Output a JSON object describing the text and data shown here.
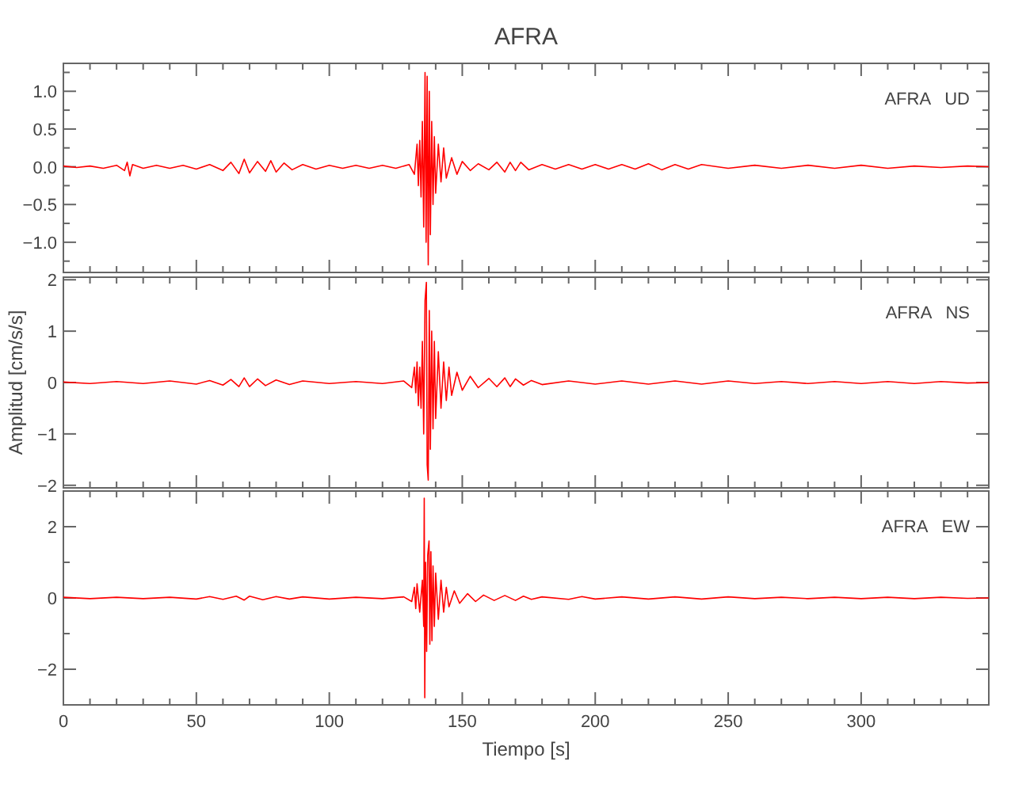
{
  "chart_data": [
    {
      "type": "line",
      "title": "AFRA",
      "annotations": [
        "AFRA   UD"
      ],
      "tick_labels": "y",
      "xlim": [
        0,
        348
      ],
      "xticks": [
        0,
        {
          "value": 10,
          "label": null
        },
        {
          "value": 20,
          "label": null
        },
        {
          "value": 30,
          "label": null
        },
        {
          "value": 40,
          "label": null
        },
        50,
        {
          "value": 60,
          "label": null
        },
        {
          "value": 70,
          "label": null
        },
        {
          "value": 80,
          "label": null
        },
        {
          "value": 90,
          "label": null
        },
        100,
        {
          "value": 110,
          "label": null
        },
        {
          "value": 120,
          "label": null
        },
        {
          "value": 130,
          "label": null
        },
        {
          "value": 140,
          "label": null
        },
        150,
        {
          "value": 160,
          "label": null
        },
        {
          "value": 170,
          "label": null
        },
        {
          "value": 180,
          "label": null
        },
        {
          "value": 190,
          "label": null
        },
        200,
        {
          "value": 210,
          "label": null
        },
        {
          "value": 220,
          "label": null
        },
        {
          "value": 230,
          "label": null
        },
        {
          "value": 240,
          "label": null
        },
        250,
        {
          "value": 260,
          "label": null
        },
        {
          "value": 270,
          "label": null
        },
        {
          "value": 280,
          "label": null
        },
        {
          "value": 290,
          "label": null
        },
        300,
        {
          "value": 310,
          "label": null
        },
        {
          "value": 320,
          "label": null
        },
        {
          "value": 330,
          "label": null
        },
        {
          "value": 340,
          "label": null
        }
      ],
      "ylim": [
        -1.4,
        1.37
      ],
      "yticks": [
        {
          "value": -1.25,
          "label": null
        },
        {
          "value": -1,
          "label": "−1.0"
        },
        {
          "value": -0.75,
          "label": null
        },
        {
          "value": -0.5,
          "label": "−0.5"
        },
        {
          "value": -0.25,
          "label": null
        },
        {
          "value": 0,
          "label": "0.0"
        },
        {
          "value": 0.25,
          "label": null
        },
        {
          "value": 0.5,
          "label": "0.5"
        },
        {
          "value": 0.75,
          "label": null
        },
        {
          "value": 1,
          "label": "1.0"
        },
        {
          "value": 1.25,
          "label": null
        }
      ],
      "series": [
        {
          "color": "#ff0000",
          "x": [
            0,
            5,
            10,
            15,
            20,
            23,
            24,
            25,
            26,
            30,
            35,
            40,
            45,
            50,
            55,
            60,
            63,
            66,
            68,
            70,
            73,
            76,
            78,
            80,
            83,
            86,
            90,
            95,
            100,
            105,
            110,
            115,
            120,
            125,
            130,
            132,
            133,
            133.5,
            134,
            134.5,
            135,
            135.5,
            136,
            136.4,
            136.8,
            137.2,
            137.6,
            138,
            138.5,
            139,
            139.5,
            140,
            141,
            142,
            143,
            144,
            146,
            148,
            150,
            153,
            156,
            160,
            163,
            166,
            168,
            170,
            172,
            175,
            180,
            185,
            190,
            195,
            200,
            205,
            210,
            215,
            220,
            225,
            230,
            235,
            240,
            250,
            260,
            270,
            280,
            290,
            300,
            310,
            320,
            330,
            340,
            348
          ],
          "values": [
            0.01,
            -0.01,
            0.01,
            -0.02,
            0.02,
            -0.05,
            0.06,
            -0.12,
            0.03,
            -0.02,
            0.02,
            -0.02,
            0.02,
            -0.03,
            0.03,
            -0.05,
            0.06,
            -0.09,
            0.1,
            -0.08,
            0.07,
            -0.06,
            0.08,
            -0.07,
            0.05,
            -0.04,
            0.03,
            -0.03,
            0.02,
            -0.02,
            0.02,
            -0.02,
            0.02,
            -0.02,
            0.03,
            -0.1,
            0.3,
            -0.25,
            0.35,
            -0.4,
            0.6,
            -0.8,
            1.25,
            -1,
            1.2,
            -1.3,
            1,
            -0.9,
            0.6,
            -0.5,
            0.4,
            -0.35,
            0.3,
            -0.2,
            0.25,
            -0.15,
            0.12,
            -0.1,
            0.07,
            -0.05,
            0.04,
            -0.04,
            0.06,
            -0.07,
            0.06,
            -0.05,
            0.06,
            -0.04,
            0.03,
            -0.03,
            0.03,
            -0.03,
            0.03,
            -0.03,
            0.03,
            -0.03,
            0.04,
            -0.04,
            0.03,
            -0.03,
            0.03,
            -0.02,
            0.02,
            -0.02,
            0.02,
            -0.02,
            0.02,
            -0.02,
            0.01,
            -0.01,
            0.01,
            0
          ]
        }
      ]
    },
    {
      "type": "line",
      "ylabel": "Amplitud [cm/s/s]",
      "annotations": [
        "AFRA   NS"
      ],
      "tick_labels": "y",
      "xlim": [
        0,
        348
      ],
      "xticks": [
        0,
        {
          "value": 10,
          "label": null
        },
        {
          "value": 20,
          "label": null
        },
        {
          "value": 30,
          "label": null
        },
        {
          "value": 40,
          "label": null
        },
        50,
        {
          "value": 60,
          "label": null
        },
        {
          "value": 70,
          "label": null
        },
        {
          "value": 80,
          "label": null
        },
        {
          "value": 90,
          "label": null
        },
        100,
        {
          "value": 110,
          "label": null
        },
        {
          "value": 120,
          "label": null
        },
        {
          "value": 130,
          "label": null
        },
        {
          "value": 140,
          "label": null
        },
        150,
        {
          "value": 160,
          "label": null
        },
        {
          "value": 170,
          "label": null
        },
        {
          "value": 180,
          "label": null
        },
        {
          "value": 190,
          "label": null
        },
        200,
        {
          "value": 210,
          "label": null
        },
        {
          "value": 220,
          "label": null
        },
        {
          "value": 230,
          "label": null
        },
        {
          "value": 240,
          "label": null
        },
        250,
        {
          "value": 260,
          "label": null
        },
        {
          "value": 270,
          "label": null
        },
        {
          "value": 280,
          "label": null
        },
        {
          "value": 290,
          "label": null
        },
        300,
        {
          "value": 310,
          "label": null
        },
        {
          "value": 320,
          "label": null
        },
        {
          "value": 330,
          "label": null
        },
        {
          "value": 340,
          "label": null
        }
      ],
      "ylim": [
        -2.05,
        2.05
      ],
      "yticks": [
        {
          "value": -2,
          "label": "−2"
        },
        {
          "value": -1,
          "label": "−1"
        },
        0,
        1,
        2
      ],
      "series": [
        {
          "color": "#ff0000",
          "x": [
            0,
            10,
            20,
            30,
            40,
            50,
            55,
            60,
            63,
            66,
            68,
            70,
            73,
            76,
            80,
            85,
            90,
            100,
            110,
            120,
            128,
            131,
            132,
            132.5,
            133,
            133.5,
            134,
            134.5,
            135,
            135.5,
            136,
            136.5,
            136.8,
            137.2,
            137.6,
            138,
            138.5,
            139,
            139.5,
            140,
            141,
            142,
            143,
            144,
            145,
            146,
            148,
            150,
            153,
            156,
            160,
            163,
            166,
            168,
            170,
            173,
            176,
            180,
            190,
            200,
            210,
            220,
            230,
            240,
            250,
            260,
            270,
            280,
            290,
            300,
            310,
            320,
            330,
            340,
            348
          ],
          "values": [
            0.01,
            -0.02,
            0.02,
            -0.02,
            0.03,
            -0.03,
            0.04,
            -0.05,
            0.06,
            -0.08,
            0.09,
            -0.08,
            0.07,
            -0.06,
            0.05,
            -0.04,
            0.03,
            -0.02,
            0.02,
            -0.02,
            0.03,
            -0.1,
            0.3,
            -0.2,
            0.4,
            -0.45,
            0.3,
            -0.5,
            0.8,
            -1,
            1.6,
            1.95,
            -1.6,
            -1.9,
            1.4,
            -1.3,
            1,
            -0.9,
            0.8,
            -0.7,
            0.6,
            -0.5,
            0.4,
            -0.35,
            0.3,
            -0.25,
            0.2,
            -0.15,
            0.12,
            -0.1,
            0.08,
            -0.08,
            0.09,
            -0.08,
            0.07,
            -0.05,
            0.04,
            -0.04,
            0.03,
            -0.03,
            0.03,
            -0.03,
            0.03,
            -0.03,
            0.03,
            -0.02,
            0.02,
            -0.02,
            0.02,
            -0.02,
            0.02,
            -0.02,
            0.02,
            -0.01,
            0
          ]
        }
      ]
    },
    {
      "type": "line",
      "xlabel": "Tiempo [s]",
      "annotations": [
        "AFRA   EW"
      ],
      "xlim": [
        0,
        348
      ],
      "xticks": [
        {
          "value": 0,
          "label": "0"
        },
        {
          "value": 10,
          "label": null
        },
        {
          "value": 20,
          "label": null
        },
        {
          "value": 30,
          "label": null
        },
        {
          "value": 40,
          "label": null
        },
        {
          "value": 50,
          "label": "50"
        },
        {
          "value": 60,
          "label": null
        },
        {
          "value": 70,
          "label": null
        },
        {
          "value": 80,
          "label": null
        },
        {
          "value": 90,
          "label": null
        },
        {
          "value": 100,
          "label": "100"
        },
        {
          "value": 110,
          "label": null
        },
        {
          "value": 120,
          "label": null
        },
        {
          "value": 130,
          "label": null
        },
        {
          "value": 140,
          "label": null
        },
        {
          "value": 150,
          "label": "150"
        },
        {
          "value": 160,
          "label": null
        },
        {
          "value": 170,
          "label": null
        },
        {
          "value": 180,
          "label": null
        },
        {
          "value": 190,
          "label": null
        },
        {
          "value": 200,
          "label": "200"
        },
        {
          "value": 210,
          "label": null
        },
        {
          "value": 220,
          "label": null
        },
        {
          "value": 230,
          "label": null
        },
        {
          "value": 240,
          "label": null
        },
        {
          "value": 250,
          "label": "250"
        },
        {
          "value": 260,
          "label": null
        },
        {
          "value": 270,
          "label": null
        },
        {
          "value": 280,
          "label": null
        },
        {
          "value": 290,
          "label": null
        },
        {
          "value": 300,
          "label": "300"
        },
        {
          "value": 310,
          "label": null
        },
        {
          "value": 320,
          "label": null
        },
        {
          "value": 330,
          "label": null
        },
        {
          "value": 340,
          "label": null
        }
      ],
      "ylim": [
        -3,
        3
      ],
      "yticks": [
        {
          "value": -2,
          "label": "−2"
        },
        {
          "value": -1,
          "label": null
        },
        0,
        {
          "value": 1,
          "label": null
        },
        2
      ],
      "series": [
        {
          "color": "#ff0000",
          "x": [
            0,
            10,
            20,
            30,
            40,
            50,
            55,
            60,
            65,
            68,
            70,
            75,
            80,
            85,
            90,
            100,
            110,
            120,
            128,
            131,
            132,
            132.5,
            133,
            134,
            135,
            135.5,
            135.7,
            135.9,
            136.2,
            136.6,
            137,
            137.5,
            137.8,
            138.2,
            138.6,
            139,
            139.5,
            140,
            141,
            142,
            143,
            144,
            145,
            147,
            149,
            152,
            155,
            158,
            162,
            166,
            170,
            173,
            176,
            180,
            190,
            195,
            200,
            210,
            220,
            230,
            240,
            250,
            260,
            270,
            280,
            290,
            300,
            310,
            320,
            330,
            340,
            348
          ],
          "values": [
            0.02,
            -0.02,
            0.02,
            -0.02,
            0.02,
            -0.03,
            0.04,
            -0.04,
            0.05,
            -0.06,
            0.05,
            -0.05,
            0.04,
            -0.03,
            0.03,
            -0.03,
            0.02,
            -0.02,
            0.03,
            -0.1,
            0.3,
            -0.3,
            0.4,
            -0.4,
            0.5,
            -0.8,
            2.8,
            -2.8,
            1,
            -1.5,
            1.2,
            1.6,
            -1.3,
            1.3,
            -1.2,
            0.9,
            -0.8,
            0.7,
            -0.6,
            0.5,
            -0.4,
            0.3,
            -0.25,
            0.2,
            -0.15,
            0.12,
            -0.1,
            0.08,
            -0.07,
            0.07,
            -0.07,
            0.05,
            -0.04,
            0.03,
            -0.04,
            0.04,
            -0.03,
            0.03,
            -0.03,
            0.03,
            -0.03,
            0.03,
            -0.02,
            0.02,
            -0.02,
            0.02,
            -0.02,
            0.02,
            -0.02,
            0.02,
            -0.01,
            0
          ]
        }
      ]
    }
  ]
}
